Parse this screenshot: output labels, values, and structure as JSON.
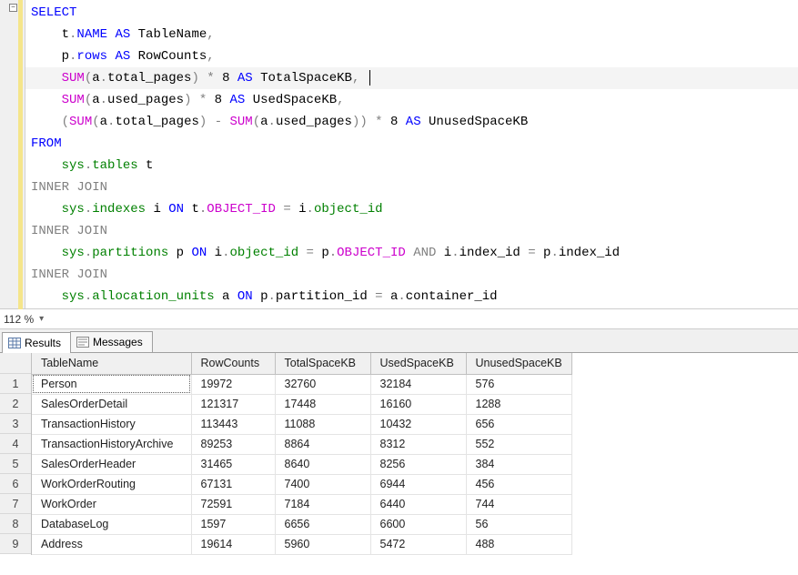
{
  "editor": {
    "zoom": "112 %",
    "highlight_line_index": 3,
    "lines": [
      [
        {
          "t": "SELECT",
          "c": "kw"
        }
      ],
      [
        {
          "t": "    t",
          "c": "txt"
        },
        {
          "t": ".",
          "c": "op"
        },
        {
          "t": "NAME ",
          "c": "kw"
        },
        {
          "t": "AS",
          "c": "kw"
        },
        {
          "t": " TableName",
          "c": "txt"
        },
        {
          "t": ",",
          "c": "op"
        }
      ],
      [
        {
          "t": "    p",
          "c": "txt"
        },
        {
          "t": ".",
          "c": "op"
        },
        {
          "t": "rows",
          "c": "kw"
        },
        {
          "t": " ",
          "c": "txt"
        },
        {
          "t": "AS",
          "c": "kw"
        },
        {
          "t": " RowCounts",
          "c": "txt"
        },
        {
          "t": ",",
          "c": "op"
        }
      ],
      [
        {
          "t": "    ",
          "c": "txt"
        },
        {
          "t": "SUM",
          "c": "fn"
        },
        {
          "t": "(",
          "c": "op"
        },
        {
          "t": "a",
          "c": "txt"
        },
        {
          "t": ".",
          "c": "op"
        },
        {
          "t": "total_pages",
          "c": "txt"
        },
        {
          "t": ")",
          "c": "op"
        },
        {
          "t": " ",
          "c": "txt"
        },
        {
          "t": "*",
          "c": "op"
        },
        {
          "t": " 8 ",
          "c": "txt"
        },
        {
          "t": "AS",
          "c": "kw"
        },
        {
          "t": " TotalSpaceKB",
          "c": "txt"
        },
        {
          "t": ",",
          "c": "op"
        },
        {
          "t": " ",
          "c": "txt"
        },
        {
          "t": "|",
          "c": "caret"
        }
      ],
      [
        {
          "t": "    ",
          "c": "txt"
        },
        {
          "t": "SUM",
          "c": "fn"
        },
        {
          "t": "(",
          "c": "op"
        },
        {
          "t": "a",
          "c": "txt"
        },
        {
          "t": ".",
          "c": "op"
        },
        {
          "t": "used_pages",
          "c": "txt"
        },
        {
          "t": ")",
          "c": "op"
        },
        {
          "t": " ",
          "c": "txt"
        },
        {
          "t": "*",
          "c": "op"
        },
        {
          "t": " 8 ",
          "c": "txt"
        },
        {
          "t": "AS",
          "c": "kw"
        },
        {
          "t": " UsedSpaceKB",
          "c": "txt"
        },
        {
          "t": ",",
          "c": "op"
        }
      ],
      [
        {
          "t": "    ",
          "c": "txt"
        },
        {
          "t": "(",
          "c": "op"
        },
        {
          "t": "SUM",
          "c": "fn"
        },
        {
          "t": "(",
          "c": "op"
        },
        {
          "t": "a",
          "c": "txt"
        },
        {
          "t": ".",
          "c": "op"
        },
        {
          "t": "total_pages",
          "c": "txt"
        },
        {
          "t": ")",
          "c": "op"
        },
        {
          "t": " ",
          "c": "txt"
        },
        {
          "t": "-",
          "c": "op"
        },
        {
          "t": " ",
          "c": "txt"
        },
        {
          "t": "SUM",
          "c": "fn"
        },
        {
          "t": "(",
          "c": "op"
        },
        {
          "t": "a",
          "c": "txt"
        },
        {
          "t": ".",
          "c": "op"
        },
        {
          "t": "used_pages",
          "c": "txt"
        },
        {
          "t": "))",
          "c": "op"
        },
        {
          "t": " ",
          "c": "txt"
        },
        {
          "t": "*",
          "c": "op"
        },
        {
          "t": " 8 ",
          "c": "txt"
        },
        {
          "t": "AS",
          "c": "kw"
        },
        {
          "t": " UnusedSpaceKB",
          "c": "txt"
        }
      ],
      [
        {
          "t": "FROM",
          "c": "kw"
        }
      ],
      [
        {
          "t": "    ",
          "c": "txt"
        },
        {
          "t": "sys",
          "c": "obj"
        },
        {
          "t": ".",
          "c": "op"
        },
        {
          "t": "tables",
          "c": "obj"
        },
        {
          "t": " t",
          "c": "txt"
        }
      ],
      [
        {
          "t": "INNER JOIN",
          "c": "op"
        }
      ],
      [
        {
          "t": "    ",
          "c": "txt"
        },
        {
          "t": "sys",
          "c": "obj"
        },
        {
          "t": ".",
          "c": "op"
        },
        {
          "t": "indexes",
          "c": "obj"
        },
        {
          "t": " i ",
          "c": "txt"
        },
        {
          "t": "ON",
          "c": "kw"
        },
        {
          "t": " t",
          "c": "txt"
        },
        {
          "t": ".",
          "c": "op"
        },
        {
          "t": "OBJECT_ID",
          "c": "fn"
        },
        {
          "t": " ",
          "c": "txt"
        },
        {
          "t": "=",
          "c": "op"
        },
        {
          "t": " i",
          "c": "txt"
        },
        {
          "t": ".",
          "c": "op"
        },
        {
          "t": "object_id",
          "c": "obj"
        }
      ],
      [
        {
          "t": "INNER JOIN",
          "c": "op"
        }
      ],
      [
        {
          "t": "    ",
          "c": "txt"
        },
        {
          "t": "sys",
          "c": "obj"
        },
        {
          "t": ".",
          "c": "op"
        },
        {
          "t": "partitions",
          "c": "obj"
        },
        {
          "t": " p ",
          "c": "txt"
        },
        {
          "t": "ON",
          "c": "kw"
        },
        {
          "t": " i",
          "c": "txt"
        },
        {
          "t": ".",
          "c": "op"
        },
        {
          "t": "object_id",
          "c": "obj"
        },
        {
          "t": " ",
          "c": "txt"
        },
        {
          "t": "=",
          "c": "op"
        },
        {
          "t": " p",
          "c": "txt"
        },
        {
          "t": ".",
          "c": "op"
        },
        {
          "t": "OBJECT_ID",
          "c": "fn"
        },
        {
          "t": " ",
          "c": "txt"
        },
        {
          "t": "AND",
          "c": "op"
        },
        {
          "t": " i",
          "c": "txt"
        },
        {
          "t": ".",
          "c": "op"
        },
        {
          "t": "index_id",
          "c": "txt"
        },
        {
          "t": " ",
          "c": "txt"
        },
        {
          "t": "=",
          "c": "op"
        },
        {
          "t": " p",
          "c": "txt"
        },
        {
          "t": ".",
          "c": "op"
        },
        {
          "t": "index_id",
          "c": "txt"
        }
      ],
      [
        {
          "t": "INNER JOIN",
          "c": "op"
        }
      ],
      [
        {
          "t": "    ",
          "c": "txt"
        },
        {
          "t": "sys",
          "c": "obj"
        },
        {
          "t": ".",
          "c": "op"
        },
        {
          "t": "allocation_units",
          "c": "obj"
        },
        {
          "t": " a ",
          "c": "txt"
        },
        {
          "t": "ON",
          "c": "kw"
        },
        {
          "t": " p",
          "c": "txt"
        },
        {
          "t": ".",
          "c": "op"
        },
        {
          "t": "partition_id",
          "c": "txt"
        },
        {
          "t": " ",
          "c": "txt"
        },
        {
          "t": "=",
          "c": "op"
        },
        {
          "t": " a",
          "c": "txt"
        },
        {
          "t": ".",
          "c": "op"
        },
        {
          "t": "container_id",
          "c": "txt"
        }
      ]
    ]
  },
  "tabs": {
    "results": "Results",
    "messages": "Messages"
  },
  "grid": {
    "columns": [
      "TableName",
      "RowCounts",
      "TotalSpaceKB",
      "UsedSpaceKB",
      "UnusedSpaceKB"
    ],
    "rows": [
      [
        "Person",
        "19972",
        "32760",
        "32184",
        "576"
      ],
      [
        "SalesOrderDetail",
        "121317",
        "17448",
        "16160",
        "1288"
      ],
      [
        "TransactionHistory",
        "113443",
        "11088",
        "10432",
        "656"
      ],
      [
        "TransactionHistoryArchive",
        "89253",
        "8864",
        "8312",
        "552"
      ],
      [
        "SalesOrderHeader",
        "31465",
        "8640",
        "8256",
        "384"
      ],
      [
        "WorkOrderRouting",
        "67131",
        "7400",
        "6944",
        "456"
      ],
      [
        "WorkOrder",
        "72591",
        "7184",
        "6440",
        "744"
      ],
      [
        "DatabaseLog",
        "1597",
        "6656",
        "6600",
        "56"
      ],
      [
        "Address",
        "19614",
        "5960",
        "5472",
        "488"
      ]
    ],
    "selected_row": 0,
    "selected_col": 0
  }
}
